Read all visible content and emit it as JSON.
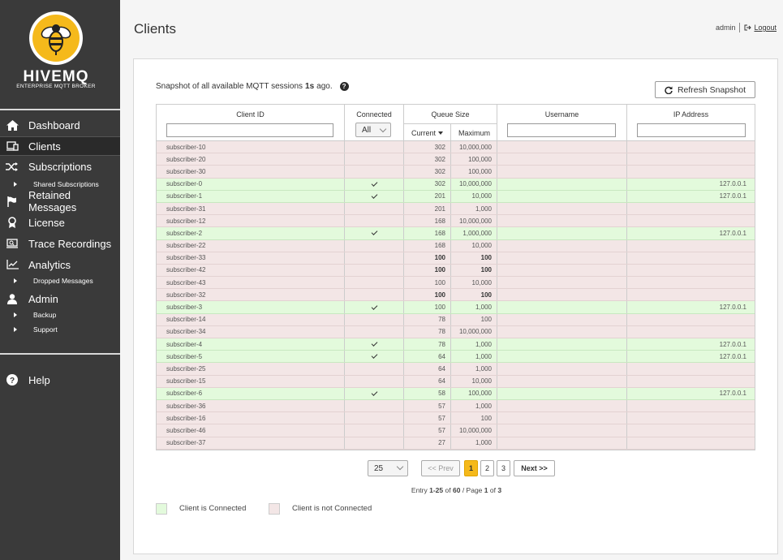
{
  "brand": {
    "name": "HIVEMQ",
    "subtitle": "ENTERPRISE MQTT BROKER"
  },
  "nav": {
    "dashboard": "Dashboard",
    "clients": "Clients",
    "subscriptions": "Subscriptions",
    "shared_subscriptions": "Shared Subscriptions",
    "retained": "Retained Messages",
    "license": "License",
    "trace": "Trace Recordings",
    "analytics": "Analytics",
    "dropped": "Dropped Messages",
    "admin": "Admin",
    "backup": "Backup",
    "support": "Support",
    "help": "Help"
  },
  "header": {
    "title": "Clients",
    "user": "admin",
    "logout": "Logout"
  },
  "snapshot": {
    "prefix": "Snapshot of all available MQTT sessions",
    "age": "1s",
    "suffix": "ago.",
    "refresh_label": "Refresh Snapshot"
  },
  "table": {
    "headers": {
      "client_id": "Client ID",
      "connected": "Connected",
      "connected_filter": "All",
      "queue_size": "Queue Size",
      "current": "Current",
      "maximum": "Maximum",
      "username": "Username",
      "ip": "IP Address"
    },
    "rows": [
      {
        "id": "subscriber-10",
        "connected": false,
        "current": "302",
        "max": "10,000,000",
        "ip": "",
        "bold": false
      },
      {
        "id": "subscriber-20",
        "connected": false,
        "current": "302",
        "max": "100,000",
        "ip": "",
        "bold": false
      },
      {
        "id": "subscriber-30",
        "connected": false,
        "current": "302",
        "max": "100,000",
        "ip": "",
        "bold": false
      },
      {
        "id": "subscriber-0",
        "connected": true,
        "current": "302",
        "max": "10,000,000",
        "ip": "127.0.0.1",
        "bold": false
      },
      {
        "id": "subscriber-1",
        "connected": true,
        "current": "201",
        "max": "10,000",
        "ip": "127.0.0.1",
        "bold": false
      },
      {
        "id": "subscriber-31",
        "connected": false,
        "current": "201",
        "max": "1,000",
        "ip": "",
        "bold": false
      },
      {
        "id": "subscriber-12",
        "connected": false,
        "current": "168",
        "max": "10,000,000",
        "ip": "",
        "bold": false
      },
      {
        "id": "subscriber-2",
        "connected": true,
        "current": "168",
        "max": "1,000,000",
        "ip": "127.0.0.1",
        "bold": false
      },
      {
        "id": "subscriber-22",
        "connected": false,
        "current": "168",
        "max": "10,000",
        "ip": "",
        "bold": false
      },
      {
        "id": "subscriber-33",
        "connected": false,
        "current": "100",
        "max": "100",
        "ip": "",
        "bold": true
      },
      {
        "id": "subscriber-42",
        "connected": false,
        "current": "100",
        "max": "100",
        "ip": "",
        "bold": true
      },
      {
        "id": "subscriber-43",
        "connected": false,
        "current": "100",
        "max": "10,000",
        "ip": "",
        "bold": false
      },
      {
        "id": "subscriber-32",
        "connected": false,
        "current": "100",
        "max": "100",
        "ip": "",
        "bold": true
      },
      {
        "id": "subscriber-3",
        "connected": true,
        "current": "100",
        "max": "1,000",
        "ip": "127.0.0.1",
        "bold": false
      },
      {
        "id": "subscriber-14",
        "connected": false,
        "current": "78",
        "max": "100",
        "ip": "",
        "bold": false
      },
      {
        "id": "subscriber-34",
        "connected": false,
        "current": "78",
        "max": "10,000,000",
        "ip": "",
        "bold": false
      },
      {
        "id": "subscriber-4",
        "connected": true,
        "current": "78",
        "max": "1,000",
        "ip": "127.0.0.1",
        "bold": false
      },
      {
        "id": "subscriber-5",
        "connected": true,
        "current": "64",
        "max": "1,000",
        "ip": "127.0.0.1",
        "bold": false
      },
      {
        "id": "subscriber-25",
        "connected": false,
        "current": "64",
        "max": "1,000",
        "ip": "",
        "bold": false
      },
      {
        "id": "subscriber-15",
        "connected": false,
        "current": "64",
        "max": "10,000",
        "ip": "",
        "bold": false
      },
      {
        "id": "subscriber-6",
        "connected": true,
        "current": "58",
        "max": "100,000",
        "ip": "127.0.0.1",
        "bold": false
      },
      {
        "id": "subscriber-36",
        "connected": false,
        "current": "57",
        "max": "1,000",
        "ip": "",
        "bold": false
      },
      {
        "id": "subscriber-16",
        "connected": false,
        "current": "57",
        "max": "100",
        "ip": "",
        "bold": false
      },
      {
        "id": "subscriber-46",
        "connected": false,
        "current": "57",
        "max": "10,000,000",
        "ip": "",
        "bold": false
      },
      {
        "id": "subscriber-37",
        "connected": false,
        "current": "27",
        "max": "1,000",
        "ip": "",
        "bold": false
      }
    ]
  },
  "pager": {
    "page_size": "25",
    "prev": "<< Prev",
    "pages": [
      "1",
      "2",
      "3"
    ],
    "next": "Next >>",
    "entry_prefix": "Entry",
    "entry_range": "1-25",
    "entry_of": "of",
    "entry_total": "60",
    "page_word": "/ Page",
    "current_page": "1",
    "page_of": "of",
    "total_pages": "3"
  },
  "legend": {
    "connected": "Client is Connected",
    "not_connected": "Client is not Connected"
  },
  "colors": {
    "accent": "#f5b91b",
    "connected_row": "#e3fadc",
    "disconnected_row": "#f3e6e6",
    "sidebar": "#3a3a3a"
  }
}
